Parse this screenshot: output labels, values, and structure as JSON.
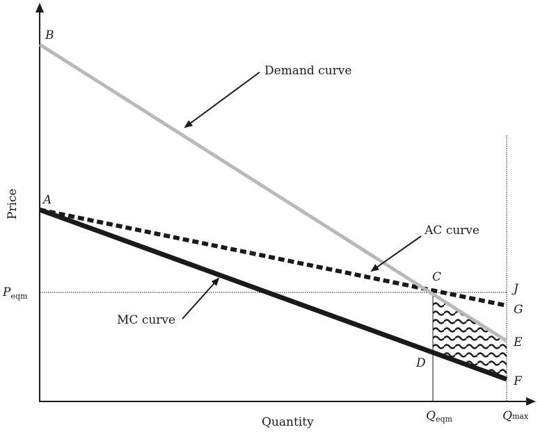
{
  "axes": {
    "y_label": "Price",
    "x_label": "Quantity"
  },
  "points": {
    "A": "A",
    "B": "B",
    "C": "C",
    "D": "D",
    "E": "E",
    "F": "F",
    "G": "G",
    "J": "J"
  },
  "ticks": {
    "p_eqm_main": "P",
    "p_eqm_sub": "eqm",
    "q_eqm_main": "Q",
    "q_eqm_sub": "eqm",
    "q_max_main": "Q",
    "q_max_sub": "max"
  },
  "annotations": {
    "demand": "Demand curve",
    "ac": "AC curve",
    "mc": "MC curve"
  },
  "colors": {
    "demand": "#b9b9b9",
    "ac": "#1a1a1a",
    "mc": "#1a1a1a",
    "axes": "#1a1a1a"
  }
}
